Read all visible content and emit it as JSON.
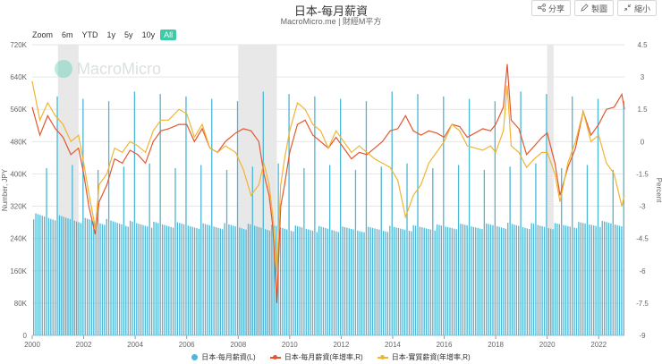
{
  "header": {
    "title": "日本-每月薪資",
    "subtitle": "MacroMicro.me | 財經M平方",
    "share_label": "分享",
    "save_label": "製圖",
    "shrink_label": "縮小"
  },
  "zoom": {
    "label": "Zoom",
    "options": [
      "6m",
      "YTD",
      "1y",
      "5y",
      "10y",
      "All"
    ],
    "active": "All"
  },
  "watermark": "MacroMicro",
  "colors": {
    "bar": "#4fb7d6",
    "wage_yoy": "#e5562e",
    "real_wage_yoy": "#f0b432",
    "recession": "#e8e8e8",
    "zoom_active": "#3ec9a7"
  },
  "chart_data": {
    "type": "bar+line",
    "title": "日本-每月薪資",
    "xlabel": "",
    "ylabel_left": "Number, JPY",
    "ylabel_right": "Percent",
    "x_ticks": [
      "2000",
      "2002",
      "2004",
      "2006",
      "2008",
      "2010",
      "2012",
      "2014",
      "2016",
      "2018",
      "2020",
      "2022"
    ],
    "y_left_ticks": [
      "0",
      "80K",
      "160K",
      "240K",
      "320K",
      "400K",
      "480K",
      "560K",
      "640K",
      "720K"
    ],
    "y_left_range": [
      0,
      720000
    ],
    "y_right_ticks": [
      "-9",
      "-7.5",
      "-6",
      "-4.5",
      "-3",
      "-1.5",
      "0",
      "1.5",
      "3",
      "4.5"
    ],
    "y_right_range": [
      -9,
      4.5
    ],
    "x_range": [
      2000.0,
      2023.0
    ],
    "grid": true,
    "legend_position": "bottom",
    "recession_periods": [
      [
        2001.0,
        2001.8
      ],
      [
        2008.0,
        2009.5
      ],
      [
        2020.0,
        2020.25
      ]
    ],
    "series": [
      {
        "name": "日本-每月薪資(L)",
        "type": "bar",
        "axis": "left",
        "base": 280000,
        "summer_peak": 410000,
        "winter_peak": 580000,
        "points": [
          [
            2000,
            295000
          ],
          [
            2002,
            285000
          ],
          [
            2004,
            275000
          ],
          [
            2006,
            272000
          ],
          [
            2008,
            270000
          ],
          [
            2010,
            265000
          ],
          [
            2012,
            262000
          ],
          [
            2014,
            264000
          ],
          [
            2016,
            268000
          ],
          [
            2018,
            272000
          ],
          [
            2020,
            270000
          ],
          [
            2022,
            276000
          ]
        ]
      },
      {
        "name": "日本-每月薪資(年增率,R)",
        "type": "line",
        "axis": "right",
        "points": [
          [
            2000.0,
            1.6
          ],
          [
            2000.3,
            0.3
          ],
          [
            2000.6,
            1.2
          ],
          [
            2000.9,
            0.6
          ],
          [
            2001.2,
            0.2
          ],
          [
            2001.5,
            -0.6
          ],
          [
            2001.8,
            -0.3
          ],
          [
            2002.0,
            -1.5
          ],
          [
            2002.2,
            -3.0
          ],
          [
            2002.45,
            -4.3
          ],
          [
            2002.6,
            -2.8
          ],
          [
            2002.9,
            -2.0
          ],
          [
            2003.2,
            -0.8
          ],
          [
            2003.5,
            -1.0
          ],
          [
            2003.8,
            -0.4
          ],
          [
            2004.1,
            -0.6
          ],
          [
            2004.4,
            -1.0
          ],
          [
            2004.7,
            0.0
          ],
          [
            2005.0,
            0.5
          ],
          [
            2005.3,
            0.6
          ],
          [
            2005.7,
            0.8
          ],
          [
            2006.0,
            0.8
          ],
          [
            2006.3,
            0.0
          ],
          [
            2006.6,
            0.6
          ],
          [
            2006.9,
            -0.3
          ],
          [
            2007.2,
            -0.5
          ],
          [
            2007.5,
            0.0
          ],
          [
            2007.9,
            0.4
          ],
          [
            2008.2,
            0.6
          ],
          [
            2008.5,
            0.5
          ],
          [
            2008.8,
            0.0
          ],
          [
            2009.0,
            -1.5
          ],
          [
            2009.2,
            -2.5
          ],
          [
            2009.35,
            -4.0
          ],
          [
            2009.5,
            -7.5
          ],
          [
            2009.65,
            -3.0
          ],
          [
            2009.8,
            -2.0
          ],
          [
            2010.0,
            -0.5
          ],
          [
            2010.3,
            0.8
          ],
          [
            2010.6,
            1.0
          ],
          [
            2010.9,
            0.3
          ],
          [
            2011.2,
            0.0
          ],
          [
            2011.5,
            -0.3
          ],
          [
            2011.8,
            0.2
          ],
          [
            2012.1,
            -0.3
          ],
          [
            2012.4,
            -0.8
          ],
          [
            2012.7,
            -0.5
          ],
          [
            2013.0,
            -0.6
          ],
          [
            2013.3,
            -0.3
          ],
          [
            2013.6,
            0.0
          ],
          [
            2013.9,
            0.5
          ],
          [
            2014.2,
            0.6
          ],
          [
            2014.5,
            1.2
          ],
          [
            2014.8,
            0.5
          ],
          [
            2015.1,
            0.3
          ],
          [
            2015.4,
            0.5
          ],
          [
            2015.7,
            0.4
          ],
          [
            2016.0,
            0.2
          ],
          [
            2016.3,
            0.8
          ],
          [
            2016.6,
            0.7
          ],
          [
            2016.9,
            0.2
          ],
          [
            2017.2,
            0.4
          ],
          [
            2017.5,
            0.6
          ],
          [
            2017.8,
            0.5
          ],
          [
            2018.0,
            0.8
          ],
          [
            2018.3,
            1.6
          ],
          [
            2018.45,
            3.6
          ],
          [
            2018.6,
            1.0
          ],
          [
            2018.9,
            0.6
          ],
          [
            2019.2,
            -0.6
          ],
          [
            2019.5,
            -0.2
          ],
          [
            2019.8,
            0.2
          ],
          [
            2020.0,
            0.4
          ],
          [
            2020.3,
            -1.0
          ],
          [
            2020.5,
            -2.5
          ],
          [
            2020.8,
            -1.2
          ],
          [
            2021.1,
            -0.3
          ],
          [
            2021.4,
            1.4
          ],
          [
            2021.7,
            0.3
          ],
          [
            2022.0,
            0.8
          ],
          [
            2022.3,
            1.5
          ],
          [
            2022.6,
            1.6
          ],
          [
            2022.9,
            2.2
          ],
          [
            2023.0,
            1.5
          ]
        ]
      },
      {
        "name": "日本-實質薪資(年增率,R)",
        "type": "line",
        "axis": "right",
        "points": [
          [
            2000.0,
            2.8
          ],
          [
            2000.3,
            1.0
          ],
          [
            2000.6,
            1.8
          ],
          [
            2000.9,
            1.2
          ],
          [
            2001.2,
            0.8
          ],
          [
            2001.5,
            0.0
          ],
          [
            2001.8,
            0.3
          ],
          [
            2002.0,
            -1.0
          ],
          [
            2002.2,
            -2.4
          ],
          [
            2002.45,
            -4.0
          ],
          [
            2002.6,
            -2.0
          ],
          [
            2002.9,
            -1.5
          ],
          [
            2003.2,
            -0.3
          ],
          [
            2003.5,
            -0.5
          ],
          [
            2003.8,
            0.0
          ],
          [
            2004.1,
            -0.2
          ],
          [
            2004.4,
            -0.5
          ],
          [
            2004.7,
            0.5
          ],
          [
            2005.0,
            1.0
          ],
          [
            2005.3,
            1.0
          ],
          [
            2005.7,
            1.5
          ],
          [
            2006.0,
            1.3
          ],
          [
            2006.3,
            0.2
          ],
          [
            2006.6,
            0.8
          ],
          [
            2006.9,
            -0.3
          ],
          [
            2007.2,
            -0.5
          ],
          [
            2007.5,
            -0.2
          ],
          [
            2007.9,
            -0.5
          ],
          [
            2008.2,
            -1.3
          ],
          [
            2008.5,
            -2.5
          ],
          [
            2008.8,
            -2.0
          ],
          [
            2009.0,
            -1.0
          ],
          [
            2009.2,
            -2.0
          ],
          [
            2009.35,
            -3.5
          ],
          [
            2009.5,
            -6.0
          ],
          [
            2009.65,
            -2.0
          ],
          [
            2009.8,
            -0.8
          ],
          [
            2010.0,
            0.5
          ],
          [
            2010.3,
            1.8
          ],
          [
            2010.6,
            1.5
          ],
          [
            2010.9,
            0.8
          ],
          [
            2011.2,
            0.5
          ],
          [
            2011.5,
            -0.3
          ],
          [
            2011.8,
            0.5
          ],
          [
            2012.1,
            0.0
          ],
          [
            2012.4,
            -0.5
          ],
          [
            2012.7,
            -0.2
          ],
          [
            2013.0,
            -0.5
          ],
          [
            2013.3,
            -0.8
          ],
          [
            2013.6,
            -1.0
          ],
          [
            2013.9,
            -1.2
          ],
          [
            2014.2,
            -1.8
          ],
          [
            2014.5,
            -3.5
          ],
          [
            2014.8,
            -2.5
          ],
          [
            2015.1,
            -2.0
          ],
          [
            2015.4,
            -1.0
          ],
          [
            2015.7,
            -0.5
          ],
          [
            2016.0,
            0.0
          ],
          [
            2016.3,
            0.8
          ],
          [
            2016.6,
            0.5
          ],
          [
            2016.9,
            -0.2
          ],
          [
            2017.2,
            -0.3
          ],
          [
            2017.5,
            -0.4
          ],
          [
            2017.8,
            -0.2
          ],
          [
            2018.0,
            -0.5
          ],
          [
            2018.3,
            0.5
          ],
          [
            2018.45,
            2.6
          ],
          [
            2018.6,
            -0.2
          ],
          [
            2018.9,
            -0.5
          ],
          [
            2019.2,
            -1.2
          ],
          [
            2019.5,
            -0.8
          ],
          [
            2019.8,
            -0.5
          ],
          [
            2020.0,
            -0.5
          ],
          [
            2020.3,
            -1.5
          ],
          [
            2020.5,
            -2.8
          ],
          [
            2020.8,
            -1.0
          ],
          [
            2021.1,
            0.0
          ],
          [
            2021.4,
            1.4
          ],
          [
            2021.7,
            0.0
          ],
          [
            2022.0,
            0.3
          ],
          [
            2022.3,
            -1.0
          ],
          [
            2022.6,
            -1.5
          ],
          [
            2022.9,
            -3.0
          ],
          [
            2023.0,
            -2.5
          ]
        ]
      }
    ]
  }
}
